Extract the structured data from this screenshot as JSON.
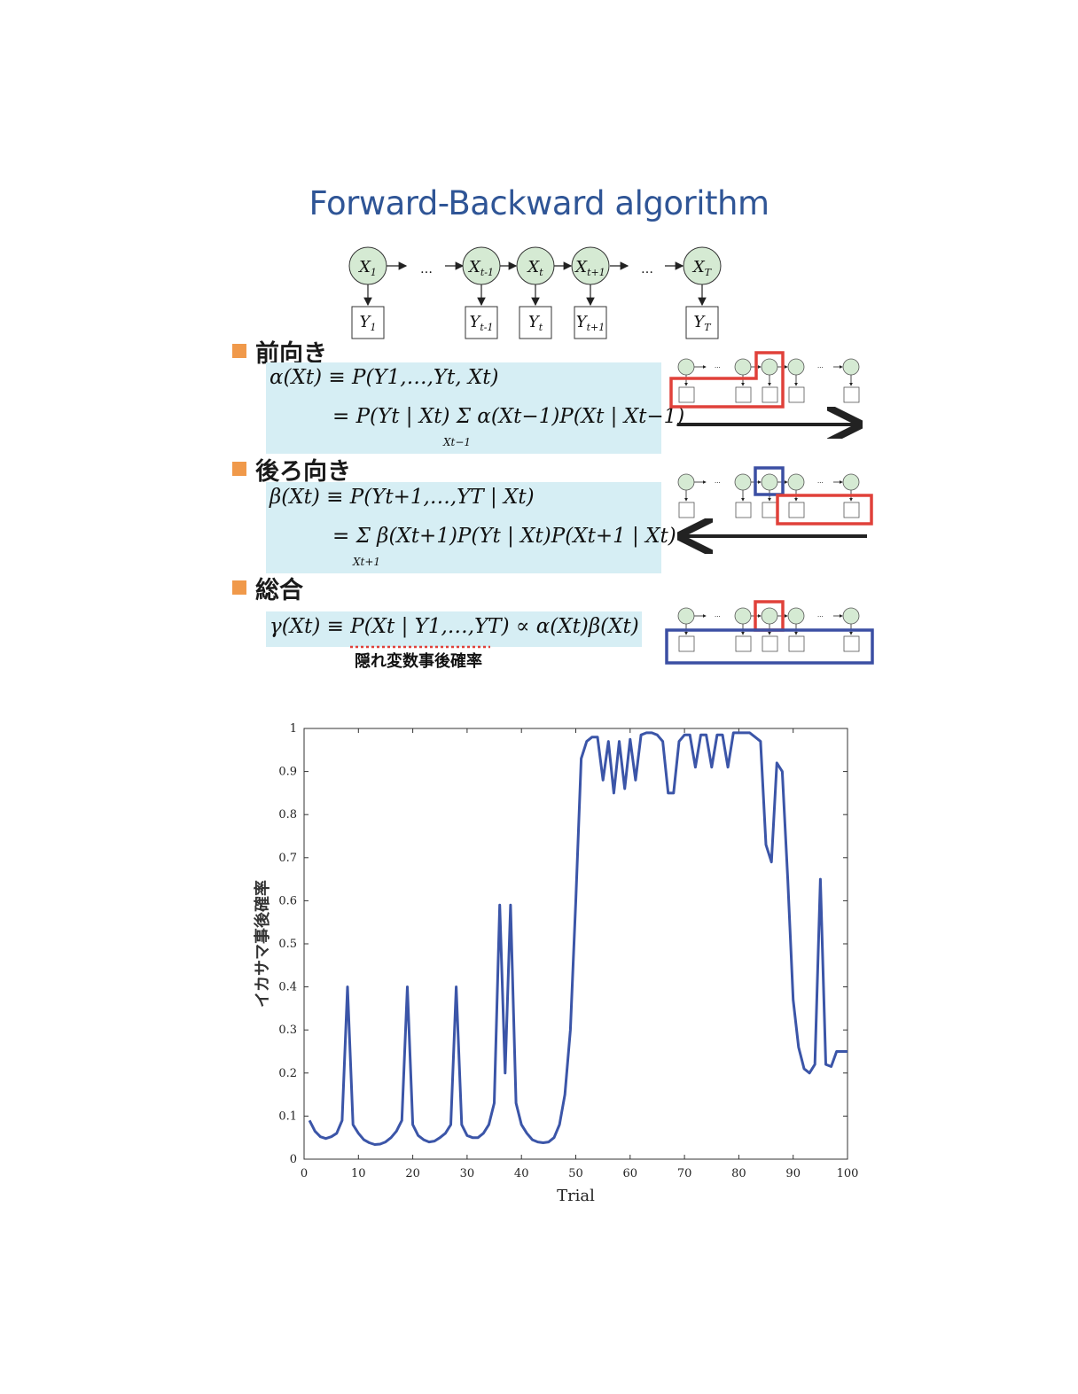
{
  "title": "Forward-Backward algorithm",
  "hmm": {
    "states": [
      "X1",
      "…",
      "Xt-1",
      "Xt",
      "Xt+1",
      "…",
      "XT"
    ],
    "observations": [
      "Y1",
      "Yt-1",
      "Yt",
      "Yt+1",
      "YT"
    ],
    "node_fill": "#d5ead3"
  },
  "sections": [
    {
      "heading": "前向き",
      "line1": "α(Xt) ≡ P(Y1,…,Yt, Xt)",
      "line2": "= P(Yt | Xt) Σ α(Xt−1)P(Xt | Xt−1)",
      "sum_index": "Xt−1"
    },
    {
      "heading": "後ろ向き",
      "line1": "β(Xt) ≡ P(Yt+1,…,YT | Xt)",
      "line2": "= Σ β(Xt+1)P(Yt | Xt)P(Xt+1 | Xt)",
      "sum_index": "Xt+1"
    },
    {
      "heading": "総合",
      "line1": "γ(Xt) ≡ P(Xt | Y1,…,YT) ∝ α(Xt)β(Xt)",
      "annotation": "隠れ変数事後確率"
    }
  ],
  "colors": {
    "red": "#e0413a",
    "blue": "#3b4fa3",
    "bullet": "#f0994a",
    "eq_bg": "#d6eef4",
    "line": "#3b55a8"
  },
  "chart_data": {
    "type": "line",
    "xlabel": "Trial",
    "ylabel": "イカサマ事後確率",
    "xlim": [
      0,
      100
    ],
    "ylim": [
      0,
      1
    ],
    "xticks": [
      0,
      10,
      20,
      30,
      40,
      50,
      60,
      70,
      80,
      90,
      100
    ],
    "yticks": [
      0,
      0.1,
      0.2,
      0.3,
      0.4,
      0.5,
      0.6,
      0.7,
      0.8,
      0.9,
      1
    ],
    "series": [
      {
        "x": [
          1,
          2,
          3,
          4,
          5,
          6,
          7,
          8,
          9,
          10,
          11,
          12,
          13,
          14,
          15,
          16,
          17,
          18,
          19,
          20,
          21,
          22,
          23,
          24,
          25,
          26,
          27,
          28,
          29,
          30,
          31,
          32,
          33,
          34,
          35,
          36,
          37,
          38,
          39,
          40,
          41,
          42,
          43,
          44,
          45,
          46,
          47,
          48,
          49,
          50,
          51,
          52,
          53,
          54,
          55,
          56,
          57,
          58,
          59,
          60,
          61,
          62,
          63,
          64,
          65,
          66,
          67,
          68,
          69,
          70,
          71,
          72,
          73,
          74,
          75,
          76,
          77,
          78,
          79,
          80,
          81,
          82,
          83,
          84,
          85,
          86,
          87,
          88,
          89,
          90,
          91,
          92,
          93,
          94,
          95,
          96,
          97,
          98,
          99,
          100
        ],
        "y": [
          0.09,
          0.065,
          0.052,
          0.048,
          0.052,
          0.06,
          0.09,
          0.4,
          0.08,
          0.06,
          0.045,
          0.038,
          0.034,
          0.035,
          0.04,
          0.05,
          0.065,
          0.09,
          0.4,
          0.08,
          0.055,
          0.045,
          0.04,
          0.042,
          0.05,
          0.06,
          0.08,
          0.4,
          0.08,
          0.055,
          0.05,
          0.05,
          0.06,
          0.08,
          0.13,
          0.59,
          0.2,
          0.59,
          0.13,
          0.08,
          0.06,
          0.045,
          0.04,
          0.038,
          0.04,
          0.05,
          0.08,
          0.15,
          0.3,
          0.6,
          0.93,
          0.97,
          0.98,
          0.98,
          0.88,
          0.97,
          0.85,
          0.97,
          0.86,
          0.975,
          0.88,
          0.985,
          0.99,
          0.99,
          0.985,
          0.97,
          0.85,
          0.85,
          0.97,
          0.985,
          0.985,
          0.91,
          0.985,
          0.985,
          0.91,
          0.985,
          0.985,
          0.91,
          0.99,
          0.99,
          0.99,
          0.99,
          0.98,
          0.97,
          0.73,
          0.69,
          0.92,
          0.9,
          0.65,
          0.37,
          0.26,
          0.21,
          0.2,
          0.22,
          0.65,
          0.22,
          0.215,
          0.25,
          0.25,
          0.25
        ]
      }
    ]
  }
}
